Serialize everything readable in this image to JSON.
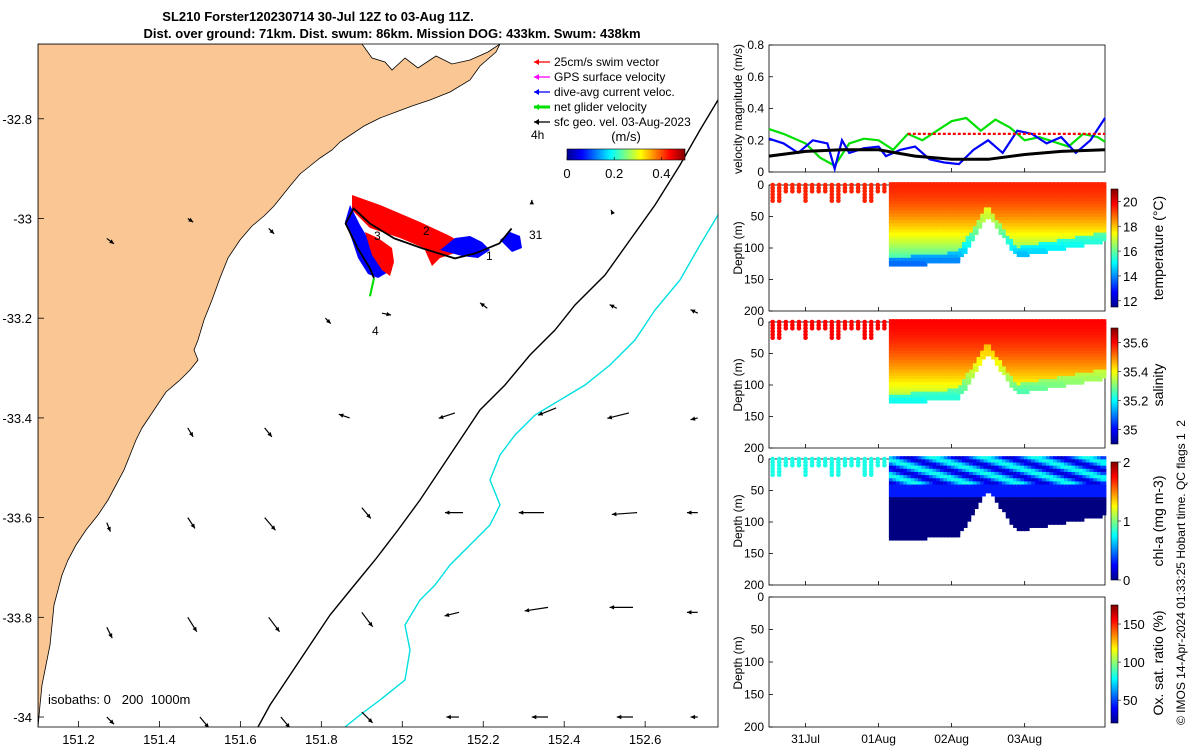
{
  "title": {
    "line1": "SL210 Forster120230714 30-Jul 12Z to 03-Aug 11Z.",
    "line2": "Dist. over ground: 71km. Dist. swum: 86km. Mission DOG: 433km. Swum: 438km"
  },
  "side_note": "© IMOS 14-Apr-2024 01:33:25 Hobart time. QC flags 1  2",
  "colors": {
    "land": "#fac794",
    "isobath_200": "#000000",
    "isobath_1000": "#00e0e0",
    "swim": "#ff0000",
    "gps": "#ff00ff",
    "current": "#0000ff",
    "net": "#00e000",
    "sfc": "#000000"
  },
  "chart_data": [
    {
      "type": "map",
      "xlim": [
        151.1,
        152.78
      ],
      "ylim": [
        -34.02,
        -32.65
      ],
      "x_ticks": [
        "151.2",
        "151.4",
        "151.6",
        "151.8",
        "152",
        "152.2",
        "152.4",
        "152.6"
      ],
      "y_ticks": [
        "-32.8",
        "-33",
        "-33.2",
        "-33.4",
        "-33.6",
        "-33.8",
        "-34"
      ],
      "legend": [
        {
          "label": "25cm/s swim vector",
          "color": "#ff0000"
        },
        {
          "label": "GPS surface velocity",
          "color": "#ff00ff"
        },
        {
          "label": "dive-avg current veloc.",
          "color": "#0000ff"
        },
        {
          "label": "net glider velocity",
          "color": "#00e000"
        },
        {
          "label": "sfc geo. vel. 03-Aug-2023",
          "color": "#000000"
        }
      ],
      "legend_placement": "top-right",
      "time_label": "4h",
      "colorbar": {
        "label": "(m/s)",
        "ticks": [
          "0",
          "0.2",
          "0.4"
        ],
        "range": [
          0,
          0.5
        ]
      },
      "isobath_label": "isobaths: 0   200  1000m",
      "track_labels": [
        "1",
        "2",
        "3",
        "4",
        "31"
      ],
      "track": [
        {
          "lon": 152.27,
          "lat": -33.02
        },
        {
          "lon": 152.24,
          "lat": -33.05
        },
        {
          "lon": 152.18,
          "lat": -33.07
        },
        {
          "lon": 152.13,
          "lat": -33.08
        },
        {
          "lon": 152.05,
          "lat": -33.06
        },
        {
          "lon": 151.98,
          "lat": -33.04
        },
        {
          "lon": 151.92,
          "lat": -33.01
        },
        {
          "lon": 151.88,
          "lat": -32.98
        },
        {
          "lon": 151.86,
          "lat": -33.01
        },
        {
          "lon": 151.89,
          "lat": -33.06
        },
        {
          "lon": 151.92,
          "lat": -33.1
        },
        {
          "lon": 151.93,
          "lat": -33.12
        }
      ],
      "geo_vectors": [
        {
          "lon": 151.27,
          "lat": -33.04,
          "u": 0.04,
          "v": -0.03
        },
        {
          "lon": 151.47,
          "lat": -33.0,
          "u": 0.03,
          "v": -0.02
        },
        {
          "lon": 151.67,
          "lat": -33.02,
          "u": 0.03,
          "v": -0.03
        },
        {
          "lon": 152.32,
          "lat": -32.97,
          "u": 0.0,
          "v": 0.02
        },
        {
          "lon": 152.52,
          "lat": -32.99,
          "u": -0.01,
          "v": 0.02
        },
        {
          "lon": 151.81,
          "lat": -33.2,
          "u": 0.03,
          "v": -0.03
        },
        {
          "lon": 151.95,
          "lat": -33.19,
          "u": 0.05,
          "v": -0.01
        },
        {
          "lon": 152.21,
          "lat": -33.18,
          "u": -0.04,
          "v": 0.03
        },
        {
          "lon": 152.53,
          "lat": -33.18,
          "u": -0.04,
          "v": 0.02
        },
        {
          "lon": 152.73,
          "lat": -33.19,
          "u": -0.04,
          "v": 0.02
        },
        {
          "lon": 151.47,
          "lat": -33.42,
          "u": 0.03,
          "v": -0.05
        },
        {
          "lon": 151.66,
          "lat": -33.42,
          "u": 0.04,
          "v": -0.05
        },
        {
          "lon": 151.87,
          "lat": -33.4,
          "u": -0.06,
          "v": 0.02
        },
        {
          "lon": 152.13,
          "lat": -33.39,
          "u": -0.09,
          "v": -0.03
        },
        {
          "lon": 152.38,
          "lat": -33.38,
          "u": -0.1,
          "v": -0.04
        },
        {
          "lon": 152.56,
          "lat": -33.39,
          "u": -0.12,
          "v": -0.03
        },
        {
          "lon": 152.73,
          "lat": -33.4,
          "u": -0.04,
          "v": -0.01
        },
        {
          "lon": 151.27,
          "lat": -33.61,
          "u": 0.02,
          "v": -0.05
        },
        {
          "lon": 151.47,
          "lat": -33.6,
          "u": 0.04,
          "v": -0.06
        },
        {
          "lon": 151.66,
          "lat": -33.6,
          "u": 0.06,
          "v": -0.07
        },
        {
          "lon": 151.9,
          "lat": -33.58,
          "u": 0.05,
          "v": -0.06
        },
        {
          "lon": 152.15,
          "lat": -33.59,
          "u": -0.1,
          "v": 0.0
        },
        {
          "lon": 152.35,
          "lat": -33.59,
          "u": -0.14,
          "v": 0.0
        },
        {
          "lon": 152.58,
          "lat": -33.59,
          "u": -0.14,
          "v": -0.01
        },
        {
          "lon": 152.73,
          "lat": -33.59,
          "u": -0.06,
          "v": 0.0
        },
        {
          "lon": 151.27,
          "lat": -33.82,
          "u": 0.03,
          "v": -0.06
        },
        {
          "lon": 151.47,
          "lat": -33.8,
          "u": 0.05,
          "v": -0.08
        },
        {
          "lon": 151.67,
          "lat": -33.8,
          "u": 0.06,
          "v": -0.08
        },
        {
          "lon": 151.9,
          "lat": -33.79,
          "u": 0.06,
          "v": -0.08
        },
        {
          "lon": 152.14,
          "lat": -33.79,
          "u": -0.08,
          "v": -0.02
        },
        {
          "lon": 152.36,
          "lat": -33.78,
          "u": -0.13,
          "v": -0.02
        },
        {
          "lon": 152.57,
          "lat": -33.78,
          "u": -0.13,
          "v": 0.0
        },
        {
          "lon": 152.73,
          "lat": -33.79,
          "u": -0.06,
          "v": 0.0
        },
        {
          "lon": 151.27,
          "lat": -34.0,
          "u": 0.04,
          "v": -0.04
        },
        {
          "lon": 151.5,
          "lat": -34.0,
          "u": 0.05,
          "v": -0.06
        },
        {
          "lon": 151.7,
          "lat": -34.0,
          "u": 0.05,
          "v": -0.06
        },
        {
          "lon": 151.9,
          "lat": -33.99,
          "u": 0.06,
          "v": -0.06
        },
        {
          "lon": 152.14,
          "lat": -34.0,
          "u": -0.07,
          "v": 0.0
        },
        {
          "lon": 152.36,
          "lat": -34.0,
          "u": -0.09,
          "v": 0.0
        },
        {
          "lon": 152.57,
          "lat": -34.0,
          "u": -0.09,
          "v": 0.0
        },
        {
          "lon": 152.73,
          "lat": -34.0,
          "u": -0.04,
          "v": 0.0
        }
      ]
    },
    {
      "type": "line",
      "ylabel": "velocity magnitude (m/s)",
      "ylim": [
        0,
        0.8
      ],
      "y_ticks": [
        "0",
        "0.2",
        "0.4",
        "0.6",
        "0.8"
      ],
      "xlim": [
        0,
        4.6
      ],
      "x_ticks": [
        {
          "label": "31Jul",
          "x": 0.5
        },
        {
          "label": "01Aug",
          "x": 1.5
        },
        {
          "label": "02Aug",
          "x": 2.5
        },
        {
          "label": "03Aug",
          "x": 3.5
        }
      ],
      "series": [
        {
          "color": "#00e000",
          "x": [
            0,
            0.2,
            0.5,
            0.7,
            0.9,
            1.1,
            1.3,
            1.5,
            1.7,
            1.9,
            2.1,
            2.3,
            2.5,
            2.7,
            2.9,
            3.1,
            3.3,
            3.5,
            3.7,
            3.9,
            4.1,
            4.3,
            4.5,
            4.6
          ],
          "y": [
            0.27,
            0.24,
            0.18,
            0.09,
            0.04,
            0.18,
            0.21,
            0.2,
            0.14,
            0.24,
            0.2,
            0.26,
            0.32,
            0.34,
            0.26,
            0.33,
            0.28,
            0.2,
            0.22,
            0.19,
            0.16,
            0.24,
            0.22,
            0.19
          ]
        },
        {
          "color": "#0000ff",
          "x": [
            0,
            0.2,
            0.4,
            0.6,
            0.8,
            0.9,
            1.0,
            1.1,
            1.3,
            1.5,
            1.6,
            1.8,
            2.0,
            2.2,
            2.4,
            2.6,
            2.8,
            3.0,
            3.2,
            3.4,
            3.6,
            3.8,
            4.0,
            4.2,
            4.4,
            4.6
          ],
          "y": [
            0.21,
            0.18,
            0.12,
            0.2,
            0.18,
            0.02,
            0.2,
            0.12,
            0.15,
            0.16,
            0.1,
            0.14,
            0.16,
            0.08,
            0.06,
            0.05,
            0.14,
            0.2,
            0.12,
            0.26,
            0.24,
            0.18,
            0.22,
            0.12,
            0.2,
            0.34
          ]
        },
        {
          "color": "#000000",
          "x": [
            0,
            0.5,
            1.0,
            1.5,
            2.0,
            2.5,
            3.0,
            3.5,
            4.0,
            4.6
          ],
          "y": [
            0.1,
            0.13,
            0.14,
            0.14,
            0.1,
            0.08,
            0.08,
            0.11,
            0.13,
            0.14
          ]
        },
        {
          "color": "#ff0000",
          "x": [
            1.9,
            2.2,
            2.5,
            2.8,
            3.1,
            3.4,
            3.7,
            4.0,
            4.3,
            4.6
          ],
          "y": [
            0.24,
            0.24,
            0.24,
            0.24,
            0.24,
            0.24,
            0.24,
            0.24,
            0.24,
            0.24
          ]
        }
      ]
    },
    {
      "type": "heatmap",
      "variable": "temperature",
      "ylabel": "Depth (m)",
      "ylim": [
        200,
        0
      ],
      "y_ticks": [
        "0",
        "50",
        "100",
        "150",
        "200"
      ],
      "colorbar_label": "temperature (°C)",
      "colorbar_ticks": [
        "12",
        "14",
        "16",
        "18",
        "20"
      ],
      "crange": [
        11.5,
        21
      ],
      "surface_value": 19.5,
      "deep_value": 15.0
    },
    {
      "type": "heatmap",
      "variable": "salinity",
      "ylabel": "Depth (m)",
      "ylim": [
        200,
        0
      ],
      "y_ticks": [
        "0",
        "50",
        "100",
        "150",
        "200"
      ],
      "colorbar_label": "salinity",
      "colorbar_ticks": [
        "35",
        "35.2",
        "35.4",
        "35.6"
      ],
      "crange": [
        34.9,
        35.7
      ],
      "surface_value": 35.6,
      "deep_value": 35.3
    },
    {
      "type": "heatmap",
      "variable": "chl-a",
      "ylabel": "Depth (m)",
      "ylim": [
        200,
        0
      ],
      "y_ticks": [
        "0",
        "50",
        "100",
        "150",
        "200"
      ],
      "colorbar_label": "chl-a (mg m-3)",
      "colorbar_ticks": [
        "0",
        "1",
        "2"
      ],
      "crange": [
        0,
        2
      ],
      "surface_value": 0.8,
      "deep_value": 0.0
    },
    {
      "type": "heatmap",
      "variable": "oxygen",
      "ylabel": "Depth (m)",
      "ylim": [
        200,
        0
      ],
      "y_ticks": [
        "0",
        "50",
        "100",
        "150",
        "200"
      ],
      "x_ticks": [
        "31Jul",
        "01Aug",
        "02Aug",
        "03Aug"
      ],
      "colorbar_label": "Ox. sat. ratio (%)",
      "colorbar_ticks": [
        "50",
        "100",
        "150"
      ],
      "crange": [
        20,
        175
      ]
    }
  ]
}
